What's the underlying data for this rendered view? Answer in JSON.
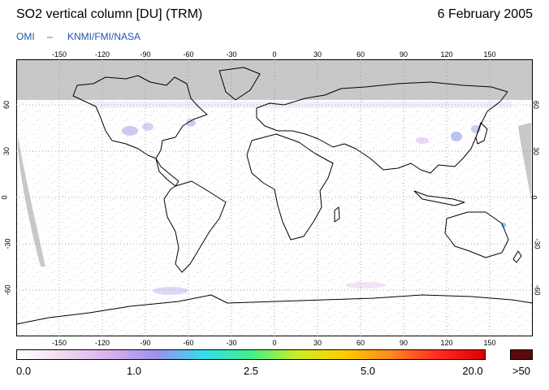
{
  "header": {
    "title": "SO2 vertical column [DU] (TRM)",
    "date": "6 February 2005",
    "credit_left": "OMI",
    "credit_dash": "–",
    "credit_right": "KNMI/FMI/NASA",
    "credit_color": "#2255aa"
  },
  "map": {
    "lon_ticks": [
      "-150",
      "-120",
      "-90",
      "-60",
      "-30",
      "0",
      "30",
      "60",
      "90",
      "120",
      "150"
    ],
    "lat_ticks": [
      "60",
      "30",
      "0",
      "-30",
      "-60"
    ],
    "land_outline_color": "#000000",
    "no_data_color": "#c8c8c8",
    "polar_night_band": "north of 63°N"
  },
  "colorbar": {
    "labels": [
      "0.0",
      "1.0",
      "2.5",
      "5.0",
      "20.0",
      ">50"
    ],
    "overflow_color": "#5a0a0a",
    "gradient": [
      "#ffffff",
      "#f0d8f0",
      "#d8b0ee",
      "#9a90ee",
      "#33ddee",
      "#44ee88",
      "#ccee22",
      "#ffcc00",
      "#ff8822",
      "#ff2a22",
      "#dd0000"
    ]
  }
}
